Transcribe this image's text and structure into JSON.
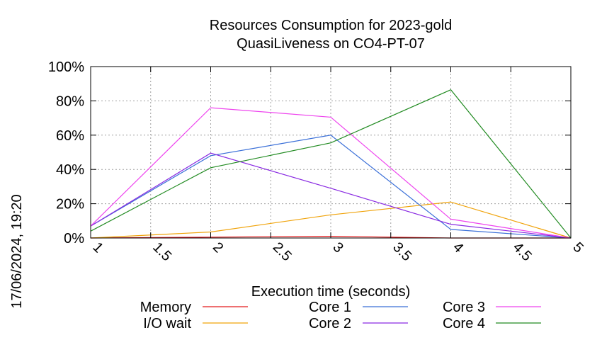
{
  "side_timestamp": "17/06/2024, 19:20",
  "chart_data": {
    "type": "line",
    "title": "Resources Consumption for 2023-gold",
    "subtitle": "QuasiLiveness on CO4-PT-07",
    "xlabel": "Execution time (seconds)",
    "ylabel": "",
    "xlim": [
      1,
      5
    ],
    "ylim": [
      0,
      100
    ],
    "x_ticks": [
      "1",
      "1.5",
      "2",
      "2.5",
      "3",
      "3.5",
      "4",
      "4.5",
      "5"
    ],
    "y_ticks": [
      "0%",
      "20%",
      "40%",
      "60%",
      "80%",
      "100%"
    ],
    "grid": true,
    "legend_position": "bottom",
    "series": [
      {
        "name": "Memory",
        "color": "#e41a1c",
        "x": [
          1,
          2,
          3,
          4,
          5
        ],
        "values": [
          0,
          0.5,
          1,
          0,
          0
        ]
      },
      {
        "name": "I/O wait",
        "color": "#f0a30a",
        "x": [
          1,
          2,
          3,
          4,
          5
        ],
        "values": [
          0,
          3.5,
          13.5,
          21,
          0
        ]
      },
      {
        "name": "Core 1",
        "color": "#3a6fd8",
        "x": [
          1,
          2,
          3,
          4,
          5
        ],
        "values": [
          7,
          48,
          60,
          5,
          0
        ]
      },
      {
        "name": "Core 2",
        "color": "#8a2be2",
        "x": [
          1,
          2,
          3,
          4,
          5
        ],
        "values": [
          7,
          49.5,
          29,
          8,
          0
        ]
      },
      {
        "name": "Core 3",
        "color": "#ee44ee",
        "x": [
          1,
          2,
          3,
          4,
          5
        ],
        "values": [
          7,
          76,
          70.5,
          11,
          0
        ]
      },
      {
        "name": "Core 4",
        "color": "#228b22",
        "x": [
          1,
          2,
          3,
          4,
          5
        ],
        "values": [
          4,
          41,
          55.5,
          86.5,
          0
        ]
      }
    ]
  }
}
